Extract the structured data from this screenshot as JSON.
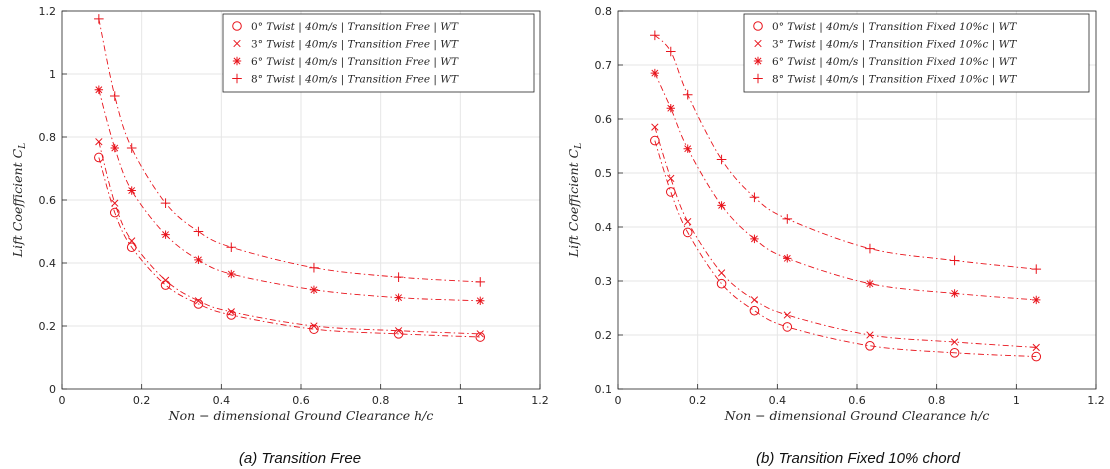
{
  "colors": {
    "series": "#e8141c",
    "grid": "#e6e6e6",
    "axis": "#262626"
  },
  "chart_data": [
    {
      "type": "scatter",
      "caption": "(a)    Transition Free",
      "xlabel": "Non − dimensional Ground Clearance h/c",
      "ylabel": "Lift Coefficient C_L",
      "xlim": [
        0,
        1.2
      ],
      "ylim": [
        0,
        1.2
      ],
      "xticks": [
        0,
        0.2,
        0.4,
        0.6,
        0.8,
        1,
        1.2
      ],
      "xtick_labels": [
        "0",
        "0.2",
        "0.4",
        "0.6",
        "0.8",
        "1",
        "1.2"
      ],
      "yticks": [
        0,
        0.2,
        0.4,
        0.6,
        0.8,
        1,
        1.2
      ],
      "ytick_labels": [
        "0",
        "0.2",
        "0.4",
        "0.6",
        "0.8",
        "1",
        "1.2"
      ],
      "grid": true,
      "legend_position": "top-right",
      "x": [
        0.0925,
        0.1325,
        0.175,
        0.26,
        0.3425,
        0.425,
        0.6325,
        0.845,
        1.05
      ],
      "series": [
        {
          "name": "0° Twist | 40m/s | Transition Free | WT",
          "marker": "circle",
          "values": [
            0.735,
            0.56,
            0.45,
            0.33,
            0.27,
            0.235,
            0.19,
            0.175,
            0.165
          ]
        },
        {
          "name": "3° Twist | 40m/s | Transition Free | WT",
          "marker": "x",
          "values": [
            0.785,
            0.59,
            0.47,
            0.345,
            0.28,
            0.245,
            0.2,
            0.185,
            0.175
          ]
        },
        {
          "name": "6° Twist | 40m/s | Transition Free | WT",
          "marker": "asterisk",
          "values": [
            0.95,
            0.765,
            0.63,
            0.49,
            0.41,
            0.365,
            0.315,
            0.29,
            0.28
          ]
        },
        {
          "name": "8° Twist | 40m/s | Transition Free | WT",
          "marker": "plus",
          "values": [
            1.175,
            0.93,
            0.765,
            0.59,
            0.5,
            0.45,
            0.385,
            0.355,
            0.34
          ]
        }
      ]
    },
    {
      "type": "scatter",
      "caption": "(b) Transition Fixed 10% chord",
      "xlabel": "Non − dimensional Ground Clearance h/c",
      "ylabel": "Lift Coefficient C_L",
      "xlim": [
        0,
        1.2
      ],
      "ylim": [
        0.1,
        0.8
      ],
      "xticks": [
        0,
        0.2,
        0.4,
        0.6,
        0.8,
        1,
        1.2
      ],
      "xtick_labels": [
        "0",
        "0.2",
        "0.4",
        "0.6",
        "0.8",
        "1",
        "1.2"
      ],
      "yticks": [
        0.1,
        0.2,
        0.3,
        0.4,
        0.5,
        0.6,
        0.7,
        0.8
      ],
      "ytick_labels": [
        "0.1",
        "0.2",
        "0.3",
        "0.4",
        "0.5",
        "0.6",
        "0.7",
        "0.8"
      ],
      "grid": true,
      "legend_position": "top-right",
      "x": [
        0.0925,
        0.1325,
        0.175,
        0.26,
        0.3425,
        0.425,
        0.6325,
        0.845,
        1.05
      ],
      "series": [
        {
          "name": "0° Twist | 40m/s | Transition Fixed 10%c | WT",
          "marker": "circle",
          "values": [
            0.56,
            0.465,
            0.39,
            0.295,
            0.245,
            0.215,
            0.18,
            0.167,
            0.16
          ]
        },
        {
          "name": "3° Twist | 40m/s | Transition Fixed 10%c | WT",
          "marker": "x",
          "values": [
            0.585,
            0.49,
            0.41,
            0.315,
            0.265,
            0.237,
            0.2,
            0.187,
            0.177
          ]
        },
        {
          "name": "6° Twist | 40m/s | Transition Fixed 10%c | WT",
          "marker": "asterisk",
          "values": [
            0.685,
            0.62,
            0.545,
            0.44,
            0.378,
            0.342,
            0.295,
            0.277,
            0.265
          ]
        },
        {
          "name": "8° Twist | 40m/s | Transition Fixed 10%c | WT",
          "marker": "plus",
          "values": [
            0.755,
            0.725,
            0.645,
            0.525,
            0.455,
            0.415,
            0.36,
            0.338,
            0.322
          ]
        }
      ]
    }
  ]
}
